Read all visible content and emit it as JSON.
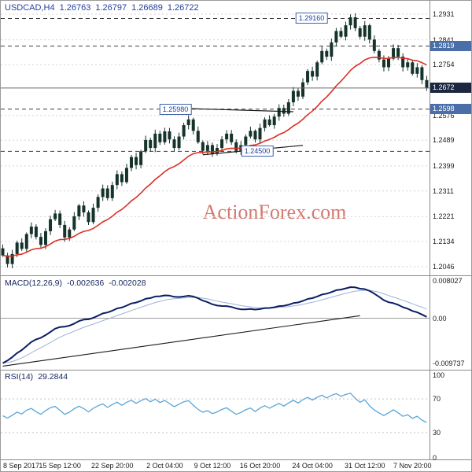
{
  "title": {
    "symbol": "USDCAD,H4",
    "open": "1.26763",
    "high": "1.26797",
    "low": "1.26689",
    "close": "1.26722"
  },
  "watermark": "ActionForex.com",
  "macd_header": {
    "name": "MACD(12,26,9)",
    "value": "-0.002636",
    "signal": "-0.002028"
  },
  "rsi_header": {
    "name": "RSI(14)",
    "value": "29.2844"
  },
  "colors": {
    "candle": "#15322b",
    "ma": "#d93025",
    "macd": "#0a1e64",
    "signal": "#9db2d6",
    "rsi_line": "#5aa5d8",
    "watermark": "#cd6155",
    "badge_axis_bg": "#4a6fa8",
    "badge_current_bg": "#1c2840",
    "level_line": "#3b3b3b",
    "grid": "#d4d4d4",
    "title": "#2440a0"
  },
  "chart_data": [
    {
      "type": "candlestick",
      "symbol": "USDCAD",
      "timeframe": "H4",
      "current_ohlc": {
        "open": 1.26763,
        "high": 1.26797,
        "low": 1.26689,
        "close": 1.26722
      },
      "y_view": [
        1.2018,
        1.2978
      ],
      "y_ticks": [
        "1.2931",
        "1.2841",
        "1.2754",
        "1.2576",
        "1.2489",
        "1.2399",
        "1.2311",
        "1.2221",
        "1.2134",
        "1.2046"
      ],
      "levels": [
        {
          "value": 1.2916,
          "label": "1.29160",
          "chart_badge_x": 395
        },
        {
          "value": 1.2819,
          "label": "1.2819",
          "axis_badge": true
        },
        {
          "value": 1.2598,
          "label": "1.25980",
          "chart_badge_x": 222,
          "axis_badge": true,
          "axis_label": "1.2598"
        },
        {
          "value": 1.245,
          "label": "1.24500",
          "chart_badge_x": 326
        }
      ],
      "current_price": {
        "value": 1.26722,
        "label": "1.2672"
      },
      "ma_red": {
        "type": "EMA",
        "period": 20
      },
      "closes": [
        1.2085,
        1.2055,
        1.209,
        1.213,
        1.2108,
        1.216,
        1.2186,
        1.215,
        1.2122,
        1.217,
        1.2212,
        1.2232,
        1.2192,
        1.2148,
        1.2176,
        1.2222,
        1.226,
        1.2236,
        1.2202,
        1.2252,
        1.229,
        1.232,
        1.2286,
        1.2332,
        1.237,
        1.2342,
        1.2392,
        1.243,
        1.2402,
        1.245,
        1.249,
        1.2462,
        1.2512,
        1.2482,
        1.252,
        1.2492,
        1.2462,
        1.2502,
        1.2542,
        1.2562,
        1.2522,
        1.2482,
        1.2452,
        1.2472,
        1.2442,
        1.2462,
        1.2492,
        1.2512,
        1.2482,
        1.2452,
        1.2472,
        1.2502,
        1.2522,
        1.2492,
        1.2532,
        1.2562,
        1.2542,
        1.2572,
        1.2602,
        1.2582,
        1.2622,
        1.2662,
        1.2642,
        1.2692,
        1.2732,
        1.2712,
        1.2762,
        1.2802,
        1.2782,
        1.2832,
        1.2872,
        1.2852,
        1.2892,
        1.292,
        1.2882,
        1.2852,
        1.2892,
        1.2842,
        1.2802,
        1.2772,
        1.2745,
        1.2775,
        1.2812,
        1.2782,
        1.2745,
        1.2762,
        1.2722,
        1.2745,
        1.27,
        1.2672
      ],
      "trendlines": [
        {
          "b1": 39,
          "p1": 1.26,
          "b2": 61,
          "p2": 1.2589
        },
        {
          "b1": 42,
          "p1": 1.2438,
          "b2": 63,
          "p2": 1.2471
        }
      ],
      "x_axis_labels": [
        {
          "bar": 0,
          "label": "8 Sep 2017"
        },
        {
          "bar": 12,
          "label": "15 Sep 12:00"
        },
        {
          "bar": 23,
          "label": "22 Sep 20:00"
        },
        {
          "bar": 34,
          "label": "2 Oct 04:00"
        },
        {
          "bar": 44,
          "label": "9 Oct 12:00"
        },
        {
          "bar": 54,
          "label": "16 Oct 20:00"
        },
        {
          "bar": 65,
          "label": "24 Oct 04:00"
        },
        {
          "bar": 76,
          "label": "31 Oct 12:00"
        },
        {
          "bar": 86,
          "label": "7 Nov 20:00"
        }
      ]
    },
    {
      "type": "line",
      "name": "MACD",
      "settings": "12,26,9",
      "current_macd": -0.002636,
      "current_signal": -0.002028,
      "y_range": [
        -0.009737,
        0.008027
      ],
      "y_tick_labels": [
        "0.008027",
        "0.00",
        "-0.009737"
      ],
      "trendline": {
        "b1": 0,
        "v1": -0.0095,
        "b2": 75,
        "v2": 0.0005
      },
      "derived_from": "closes"
    },
    {
      "type": "line",
      "name": "RSI",
      "settings": "14",
      "current": 29.2844,
      "y_range": [
        0,
        100
      ],
      "y_tick_labels": [
        "100",
        "70",
        "30",
        "0"
      ],
      "bands": [
        70,
        30
      ],
      "derived_from": "closes"
    }
  ]
}
